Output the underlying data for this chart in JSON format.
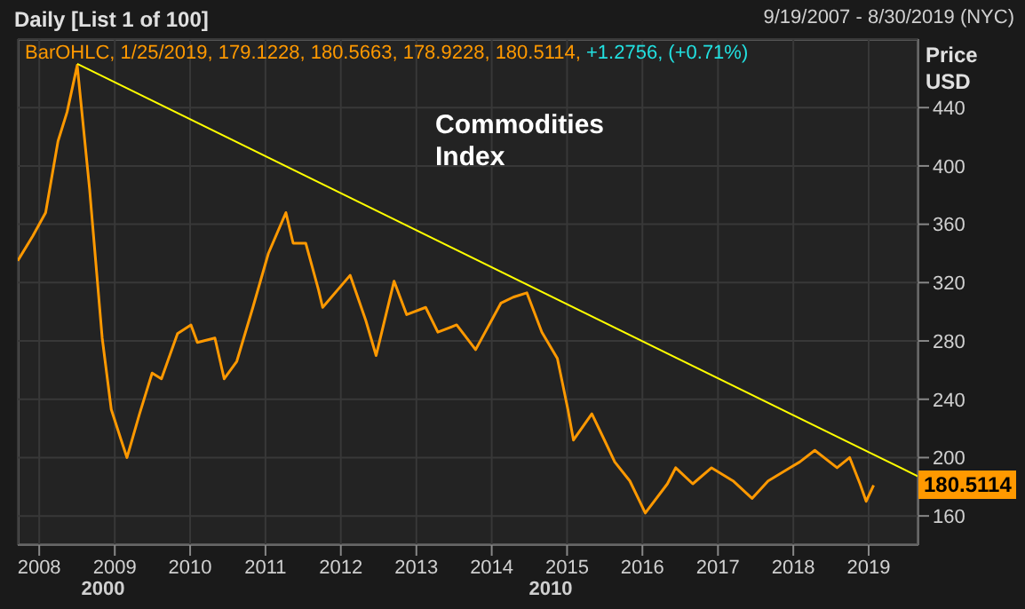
{
  "chart_data": {
    "type": "line",
    "title": "Commodities Index",
    "subtitle": "Daily [List 1 of 100]",
    "ylabel": "Price USD",
    "annotations": [
      "9/19/2007 - 8/30/2019 (NYC)",
      "BarOHLC, 1/25/2019, 179.1228, 180.5663, 178.9228, 180.5114,",
      "+1.2756, (+0.71%)",
      "2000",
      "2010",
      "180.5114"
    ],
    "series": [
      {
        "color": "#ff9900",
        "x": [
          "2007-09-19",
          "2007-12-01",
          "2008-02-01",
          "2008-04-01",
          "2008-05-15",
          "2008-07-03",
          "2008-09-01",
          "2008-11-01",
          "2008-12-15",
          "2009-02-01",
          "2009-03-01",
          "2009-05-01",
          "2009-07-01",
          "2009-08-15",
          "2009-11-01",
          "2010-01-05",
          "2010-02-05",
          "2010-05-01",
          "2010-06-15",
          "2010-08-15",
          "2010-11-01",
          "2011-01-15",
          "2011-04-10",
          "2011-05-15",
          "2011-07-15",
          "2011-09-15",
          "2011-10-05",
          "2012-02-15",
          "2012-05-01",
          "2012-06-20",
          "2012-09-15",
          "2012-11-15",
          "2013-02-15",
          "2013-04-15",
          "2013-07-15",
          "2013-10-15",
          "2014-02-15",
          "2014-04-15",
          "2014-06-20",
          "2014-09-01",
          "2014-11-15",
          "2015-01-05",
          "2015-02-01",
          "2015-05-01",
          "2015-07-01",
          "2015-08-20",
          "2015-11-01",
          "2016-01-15",
          "2016-05-01",
          "2016-06-10",
          "2016-09-01",
          "2016-12-01",
          "2017-03-15",
          "2017-06-15",
          "2017-09-01",
          "2017-12-15",
          "2018-02-01",
          "2018-04-15",
          "2018-08-01",
          "2018-10-01",
          "2018-11-20",
          "2018-12-20",
          "2019-01-25"
        ],
        "values": [
          335,
          352,
          368,
          417,
          437,
          469,
          384,
          282,
          233,
          212,
          200,
          230,
          258,
          254,
          285,
          291,
          279,
          282,
          254,
          266,
          303,
          340,
          368,
          347,
          347,
          315,
          303,
          325,
          294,
          270,
          321,
          298,
          303,
          286,
          291,
          274,
          306,
          310,
          313,
          286,
          268,
          233,
          212,
          230,
          212,
          197,
          184,
          162,
          182,
          193,
          182,
          193,
          184,
          172,
          184,
          193,
          197,
          205,
          193,
          200,
          182,
          170,
          181
        ]
      },
      {
        "type": "line",
        "color": "#ffff00",
        "x": [
          "2008-07-03",
          "2019-08-30"
        ],
        "values": [
          470,
          187
        ]
      }
    ],
    "xlim": [
      "2007-09-19",
      "2019-08-30"
    ],
    "xticks": [
      {
        "value": "2008-01-01",
        "label": "2008"
      },
      {
        "value": "2009-01-01",
        "label": "2009"
      },
      {
        "value": "2010-01-01",
        "label": "2010"
      },
      {
        "value": "2011-01-01",
        "label": "2011"
      },
      {
        "value": "2012-01-01",
        "label": "2012"
      },
      {
        "value": "2013-01-01",
        "label": "2013"
      },
      {
        "value": "2014-01-01",
        "label": "2014"
      },
      {
        "value": "2015-01-01",
        "label": "2015"
      },
      {
        "value": "2016-01-01",
        "label": "2016"
      },
      {
        "value": "2017-01-01",
        "label": "2017"
      },
      {
        "value": "2018-01-01",
        "label": "2018"
      },
      {
        "value": "2019-01-01",
        "label": "2019"
      }
    ],
    "ylim": [
      140,
      487
    ],
    "yticks": [
      160,
      200,
      240,
      280,
      320,
      360,
      400,
      440
    ],
    "grid": true,
    "marker": "none",
    "line_style": "solid"
  }
}
